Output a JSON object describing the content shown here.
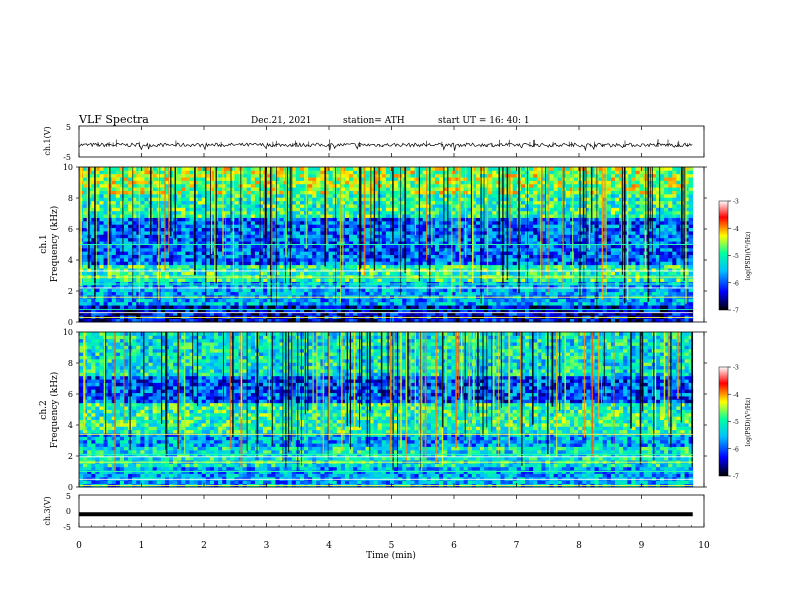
{
  "header": {
    "title": "VLF Spectra",
    "date": "Dec.21, 2021",
    "station": "station= ATH",
    "start": "start UT =  16: 40: 1"
  },
  "chart_data": [
    {
      "type": "line",
      "ylabel": "ch.1(V)",
      "ylim": [
        -5,
        5
      ],
      "yticks": [
        "5",
        "-5"
      ],
      "description_values": {
        "baseline_V": -1.1,
        "noise_amplitude_V": 0.6
      }
    },
    {
      "type": "heatmap",
      "ylabel_top": "ch.1",
      "ylabel": "Frequency  (kHz)",
      "ylim": [
        0,
        10
      ],
      "yticks": [
        "0",
        "2",
        "4",
        "6",
        "8",
        "10"
      ],
      "colorbar": {
        "label": "log(PSD)(V²/Hz)",
        "range": [
          -7,
          -3
        ],
        "ticks": [
          "-3",
          "-4",
          "-5",
          "-6",
          "-7"
        ]
      },
      "bands_kHz": [
        {
          "from": 0,
          "to": 1.0,
          "level": -6.4
        },
        {
          "from": 1.0,
          "to": 2.6,
          "level": -5.6
        },
        {
          "from": 2.6,
          "to": 3.6,
          "level": -5.0
        },
        {
          "from": 3.6,
          "to": 6.6,
          "level": -5.9
        },
        {
          "from": 6.6,
          "to": 8.2,
          "level": -5.0
        },
        {
          "from": 8.2,
          "to": 10,
          "level": -4.6
        }
      ],
      "lines_kHz": [
        0.3,
        0.6,
        0.8,
        1.6,
        2.2,
        2.45,
        2.9,
        3.3,
        5.0
      ]
    },
    {
      "type": "heatmap",
      "ylabel_top": "ch.2",
      "ylabel": "Frequency  (kHz)",
      "ylim": [
        0,
        10
      ],
      "yticks": [
        "0",
        "2",
        "4",
        "6",
        "8",
        "10"
      ],
      "colorbar": {
        "label": "log(PSD)(V²/Hz)",
        "range": [
          -7,
          -3
        ],
        "ticks": [
          "-3",
          "-4",
          "-5",
          "-6",
          "-7"
        ]
      },
      "bands_kHz": [
        {
          "from": 0,
          "to": 1.2,
          "level": -5.6
        },
        {
          "from": 1.2,
          "to": 2.6,
          "level": -5.2
        },
        {
          "from": 2.6,
          "to": 3.4,
          "level": -5.6
        },
        {
          "from": 3.4,
          "to": 5.4,
          "level": -5.0
        },
        {
          "from": 5.4,
          "to": 7.0,
          "level": -6.0
        },
        {
          "from": 7.0,
          "to": 10,
          "level": -5.2
        }
      ],
      "lines_kHz": [
        0.1,
        0.5,
        1.0,
        1.6,
        1.95,
        2.1,
        3.4
      ]
    },
    {
      "type": "line",
      "ylabel": "ch.3(V)",
      "ylim": [
        -5,
        5
      ],
      "yticks": [
        "5",
        "0",
        "-5"
      ],
      "description_values": {
        "baseline_V": -1.0,
        "noise_amplitude_V": 0.0
      }
    }
  ],
  "xaxis": {
    "label": "Time  (min)",
    "xlim": [
      0,
      10
    ],
    "data_end_min": 9.82,
    "ticks": [
      "0",
      "1",
      "2",
      "3",
      "4",
      "5",
      "6",
      "7",
      "8",
      "9",
      "10"
    ]
  },
  "colormap": [
    "#000000",
    "#0000ff",
    "#00c0ff",
    "#00ffa0",
    "#ffff00",
    "#ff0000",
    "#ffffff"
  ]
}
